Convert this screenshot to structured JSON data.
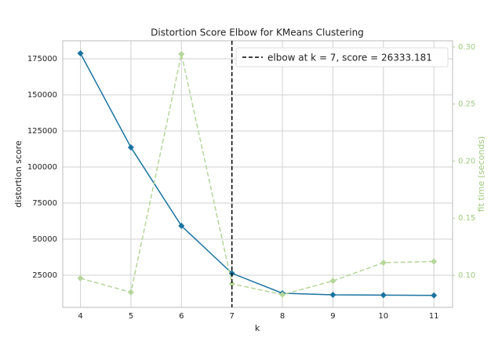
{
  "chart_data": {
    "type": "line",
    "title": "Distortion Score Elbow for KMeans Clustering",
    "x_label": "k",
    "y_label": "distortion score",
    "y2_label": "fit time (seconds)",
    "x": [
      4,
      5,
      6,
      7,
      8,
      9,
      10,
      11
    ],
    "series": [
      {
        "name": "distortion score",
        "color": "#1a73a0",
        "values": [
          178800,
          113600,
          59200,
          26333.181,
          12500,
          11400,
          11200,
          11000
        ]
      },
      {
        "name": "fit time",
        "color": "#b5d69a",
        "axis": "y2",
        "values": [
          0.0973,
          0.085,
          0.2938,
          0.0925,
          0.083,
          0.095,
          0.111,
          0.112
        ]
      }
    ],
    "elbow_k": 7,
    "legend_label": "elbow at k = 7, score = 26333.181",
    "legend_position": "upper right",
    "xlim": [
      3.65,
      11.37
    ],
    "xticks": [
      4,
      5,
      6,
      7,
      8,
      9,
      10,
      11
    ],
    "ylim": [
      2700,
      187500
    ],
    "yticks": [
      25000,
      50000,
      75000,
      100000,
      125000,
      150000,
      175000
    ],
    "y2lim": [
      0.0718,
      0.3055
    ],
    "y2ticks": [
      {
        "value": 0.1,
        "label": "0.10"
      },
      0.15,
      {
        "value": 0.2,
        "label": "0.20"
      },
      0.25,
      {
        "value": 0.3,
        "label": "0.30"
      }
    ],
    "grid": true
  }
}
